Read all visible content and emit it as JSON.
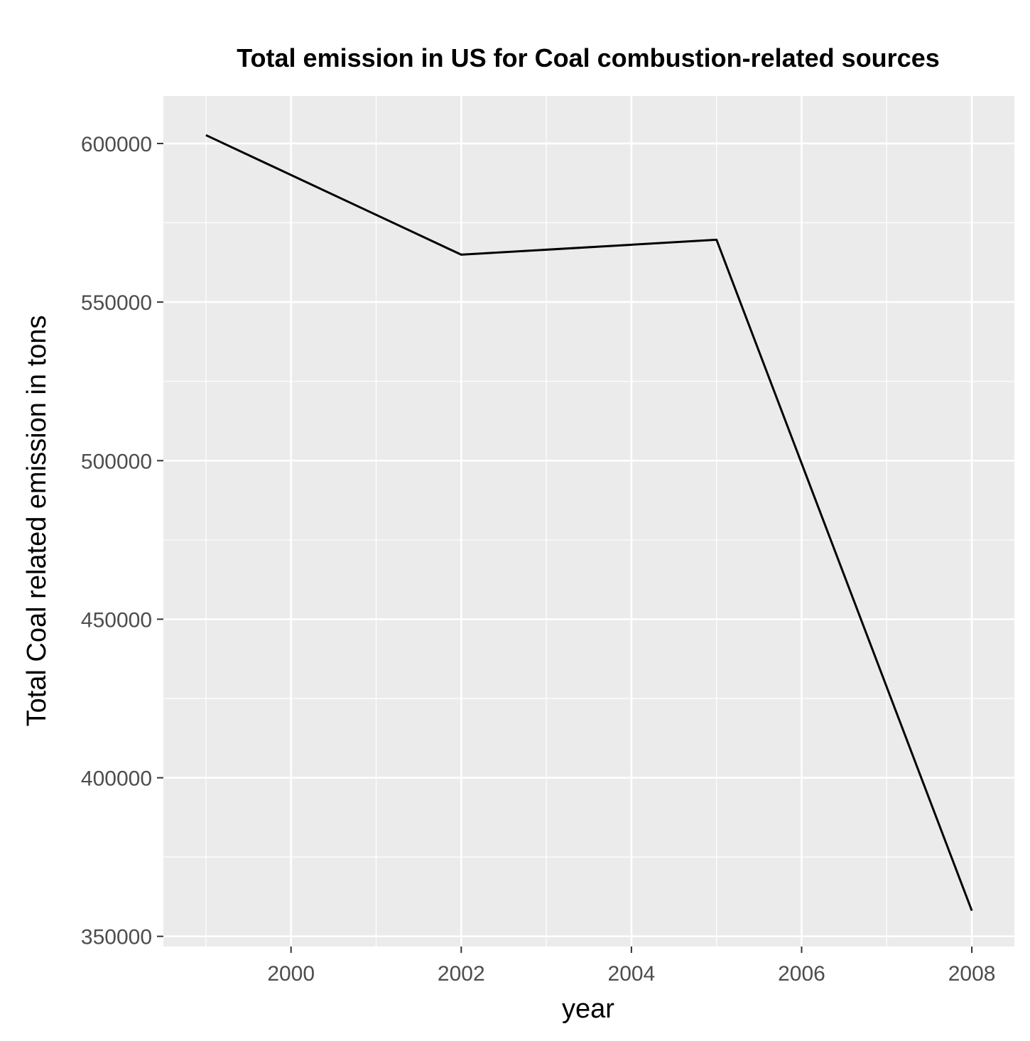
{
  "chart_data": {
    "type": "line",
    "title": "Total emission in US for Coal combustion-related sources",
    "xlabel": "year",
    "ylabel": "Total Coal related emission in tons",
    "x": [
      1999,
      2002,
      2005,
      2008
    ],
    "series": [
      {
        "values": [
          602624,
          564936,
          569655,
          358084
        ]
      }
    ],
    "xlim": [
      1998.5,
      2008.5
    ],
    "ylim": [
      346800,
      615000
    ],
    "x_ticks": [
      2000,
      2002,
      2004,
      2006,
      2008
    ],
    "x_tick_labels": [
      "2000",
      "2002",
      "2004",
      "2006",
      "2008"
    ],
    "y_ticks": [
      350000,
      400000,
      450000,
      500000,
      550000,
      600000
    ],
    "y_tick_labels": [
      "350000",
      "400000",
      "450000",
      "500000",
      "550000",
      "600000"
    ],
    "grid": true,
    "legend": "none",
    "colors": {
      "panel": "#ebebeb",
      "grid": "#ffffff",
      "line": "#000000",
      "tick_text": "#4d4d4d"
    }
  }
}
